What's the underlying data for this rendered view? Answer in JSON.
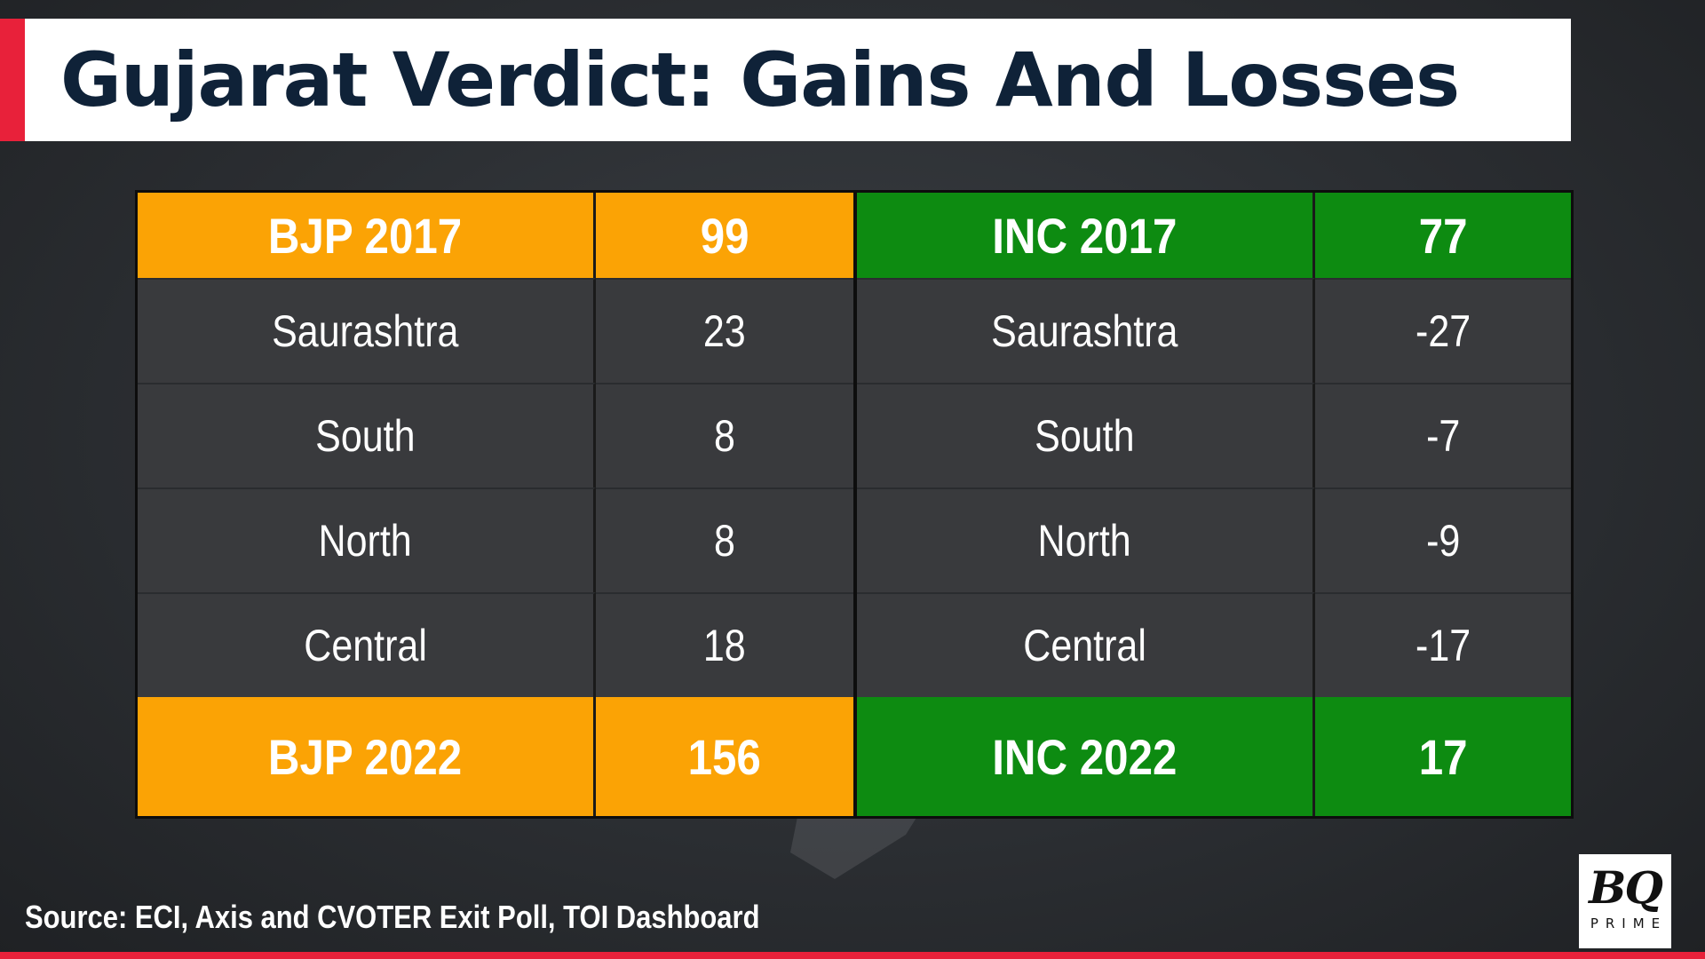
{
  "title": "Gujarat Verdict: Gains And Losses",
  "colors": {
    "accent": "#e8213a",
    "bjp": "#fba305",
    "inc": "#0d8b11",
    "title_text": "#0f2238"
  },
  "source": "Source: ECI, Axis and CVOTER Exit Poll, TOI Dashboard",
  "logo": {
    "main": "BQ",
    "sub": "PRIME"
  },
  "chart_data": {
    "type": "table",
    "title": "Gujarat Verdict: Gains And Losses",
    "columns": [
      {
        "party": "BJP",
        "color": "#fba305"
      },
      {
        "party": "INC",
        "color": "#0d8b11"
      }
    ],
    "header": {
      "bjp_label": "BJP 2017",
      "bjp_value": "99",
      "inc_label": "INC 2017",
      "inc_value": "77"
    },
    "rows": [
      {
        "region": "Saurashtra",
        "bjp": "23",
        "inc": "-27"
      },
      {
        "region": "South",
        "bjp": "8",
        "inc": "-7"
      },
      {
        "region": "North",
        "bjp": "8",
        "inc": "-9"
      },
      {
        "region": "Central",
        "bjp": "18",
        "inc": "-17"
      }
    ],
    "footer": {
      "bjp_label": "BJP 2022",
      "bjp_value": "156",
      "inc_label": "INC 2022",
      "inc_value": "17"
    }
  }
}
